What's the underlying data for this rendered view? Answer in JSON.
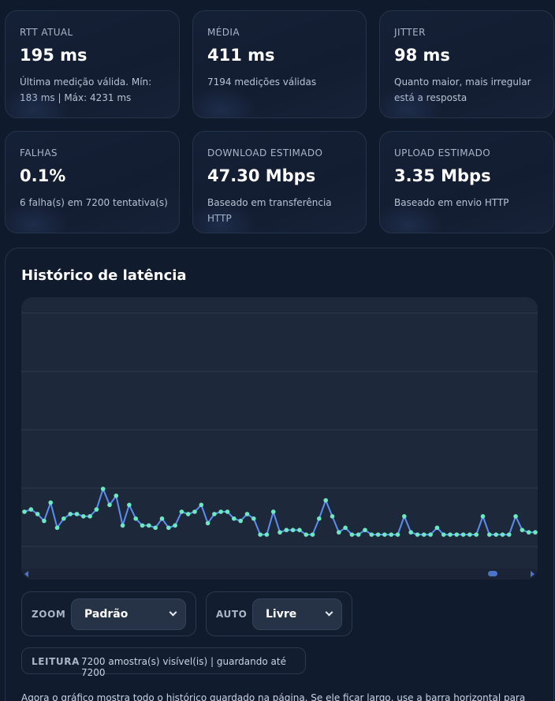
{
  "stats": [
    {
      "label": "RTT ATUAL",
      "value": "195 ms",
      "sub": "Última medição válida. Mín: 183 ms | Máx: 4231 ms"
    },
    {
      "label": "MÉDIA",
      "value": "411 ms",
      "sub": "7194 medições válidas"
    },
    {
      "label": "JITTER",
      "value": "98 ms",
      "sub": "Quanto maior, mais irregular está a resposta"
    },
    {
      "label": "FALHAS",
      "value": "0.1%",
      "sub": "6 falha(s) em 7200 tentativa(s)"
    },
    {
      "label": "DOWNLOAD ESTIMADO",
      "value": "47.30 Mbps",
      "sub": "Baseado em transferência HTTP"
    },
    {
      "label": "UPLOAD ESTIMADO",
      "value": "3.35 Mbps",
      "sub": "Baseado em envio HTTP"
    }
  ],
  "history": {
    "title": "Histórico de latência",
    "zoom_label": "ZOOM",
    "zoom_value": "Padrão",
    "auto_label": "AUTO",
    "auto_value": "Livre",
    "reading_label": "LEITURA",
    "reading_text": "7200 amostra(s) visível(is) | guardando até 7200",
    "note": "Agora o gráfico mostra todo o histórico guardado na página. Se ele ficar largo, use a barra horizontal para"
  },
  "chart_data": {
    "type": "line",
    "series": [
      {
        "values": [
          210,
          215,
          205,
          190,
          230,
          175,
          195,
          205,
          205,
          200,
          200,
          215,
          260,
          225,
          245,
          180,
          225,
          195,
          180,
          180,
          175,
          195,
          175,
          180,
          210,
          205,
          210,
          225,
          185,
          205,
          210,
          210,
          195,
          190,
          205,
          195,
          160,
          160,
          210,
          165,
          170,
          170,
          170,
          160,
          160,
          195,
          235,
          200,
          165,
          175,
          160,
          160,
          170,
          160,
          160,
          160,
          160,
          160,
          200,
          165,
          160,
          160,
          160,
          175,
          160,
          160,
          160,
          160,
          160,
          160,
          200,
          160,
          160,
          160,
          160,
          200,
          170,
          165,
          165
        ]
      }
    ],
    "colors": {
      "line": "#5b8ef0",
      "point": "#6ee8c0"
    },
    "grid": true
  }
}
